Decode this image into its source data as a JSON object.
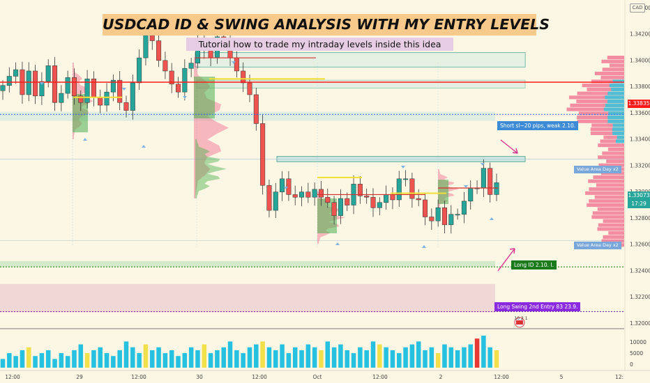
{
  "header": {
    "title": "USDCAD ID & SWING ANALYSIS WITH MY ENTRY LEVELS",
    "subtitle": "Tutorial how to trade my intraday levels inside this idea",
    "currency": "CAD"
  },
  "annotations": {
    "short": "Short sl~20 pips, weak 2.10.",
    "value_area_top": "Value Area Day x2",
    "value_area_bottom": "Value Area Day x2",
    "long_id": "Long ID   2.10. I.",
    "long_swing": "Long Swing 2nd Entry 83  23.9.",
    "event_icon": "10 2 1"
  },
  "price_tags": {
    "red_level": "1.33835",
    "last_price": "1.33073",
    "countdown": "17:29"
  },
  "colors": {
    "background": "#fbf7e4",
    "bull": "#26a69a",
    "bear": "#ef5350",
    "red_line": "#ff1a1a",
    "blue_dotted": "#2962ff",
    "green_dotted": "#0a7a0a",
    "purple_dotted": "#7b1fa2",
    "short_tag": "#3d8bd6",
    "long_id_tag": "#1b7a1b",
    "long_swing_tag": "#8a2be2",
    "zone_teal": "#cfe8e0",
    "zone_green": "#d3e9c9",
    "zone_pink": "#efd8d6",
    "profile_pink": "#f06b8c",
    "profile_blue": "#3fc2d8",
    "profile_green": "#4caf50",
    "vol_blue": "#26c0e0",
    "vol_yellow": "#f1e04a",
    "vol_red": "#e53935"
  },
  "chart_data": {
    "type": "candlestick",
    "symbol": "USDCAD",
    "y_axis": {
      "ticks": [
        "1.34400",
        "1.34200",
        "1.34000",
        "1.33800",
        "1.33600",
        "1.33400",
        "1.33200",
        "1.33000",
        "1.32800",
        "1.32600",
        "1.32400",
        "1.32200",
        "1.32000"
      ],
      "range": [
        1.3196,
        1.3446
      ]
    },
    "volume_axis": {
      "ticks": [
        "10000",
        "5000",
        "0"
      ]
    },
    "x_axis": {
      "labels": [
        "12:00",
        "29",
        "12:00",
        "30",
        "12:00",
        "Oct",
        "12:00",
        "2",
        "12:00",
        "5",
        "12:"
      ]
    },
    "levels": {
      "red_level": 1.33835,
      "short_dotted": 1.3359,
      "long_id_dotted": 1.3243,
      "long_swing_dotted": 1.3209,
      "value_area_top": 1.3325,
      "value_area_bottom": 1.3263
    },
    "price_path": [
      1.3381,
      1.3388,
      1.3393,
      1.3374,
      1.3392,
      1.3373,
      1.3384,
      1.3396,
      1.3368,
      1.3375,
      1.3387,
      1.3373,
      1.3368,
      1.3386,
      1.3372,
      1.3366,
      1.3376,
      1.3385,
      1.3368,
      1.3362,
      1.3383,
      1.3402,
      1.3419,
      1.3415,
      1.34,
      1.3392,
      1.3382,
      1.3376,
      1.3394,
      1.3398,
      1.3415,
      1.3408,
      1.3402,
      1.3418,
      1.3416,
      1.3402,
      1.3392,
      1.3383,
      1.3374,
      1.3352,
      1.3305,
      1.3286,
      1.33,
      1.331,
      1.3298,
      1.3296,
      1.33,
      1.3296,
      1.3302,
      1.3296,
      1.3292,
      1.3282,
      1.3295,
      1.329,
      1.3306,
      1.3297,
      1.3296,
      1.3288,
      1.3292,
      1.3298,
      1.3294,
      1.331,
      1.331,
      1.3295,
      1.3294,
      1.3281,
      1.3278,
      1.3288,
      1.3275,
      1.3283,
      1.3283,
      1.3293,
      1.3303,
      1.3303,
      1.3318,
      1.3298,
      1.3307
    ],
    "volume": [
      3,
      5,
      4,
      6,
      7,
      4,
      5,
      6,
      3,
      5,
      4,
      6,
      8,
      5,
      6,
      7,
      5,
      4,
      6,
      9,
      7,
      5,
      8,
      6,
      7,
      5,
      6,
      4,
      5,
      7,
      6,
      8,
      5,
      6,
      7,
      9,
      6,
      5,
      7,
      8,
      9,
      7,
      6,
      8,
      5,
      7,
      6,
      8,
      7,
      6,
      9,
      7,
      8,
      6,
      5,
      7,
      6,
      9,
      8,
      7,
      6,
      5,
      7,
      8,
      9,
      6,
      7,
      5,
      8,
      7,
      6,
      7,
      8,
      10,
      11,
      7,
      6
    ]
  }
}
